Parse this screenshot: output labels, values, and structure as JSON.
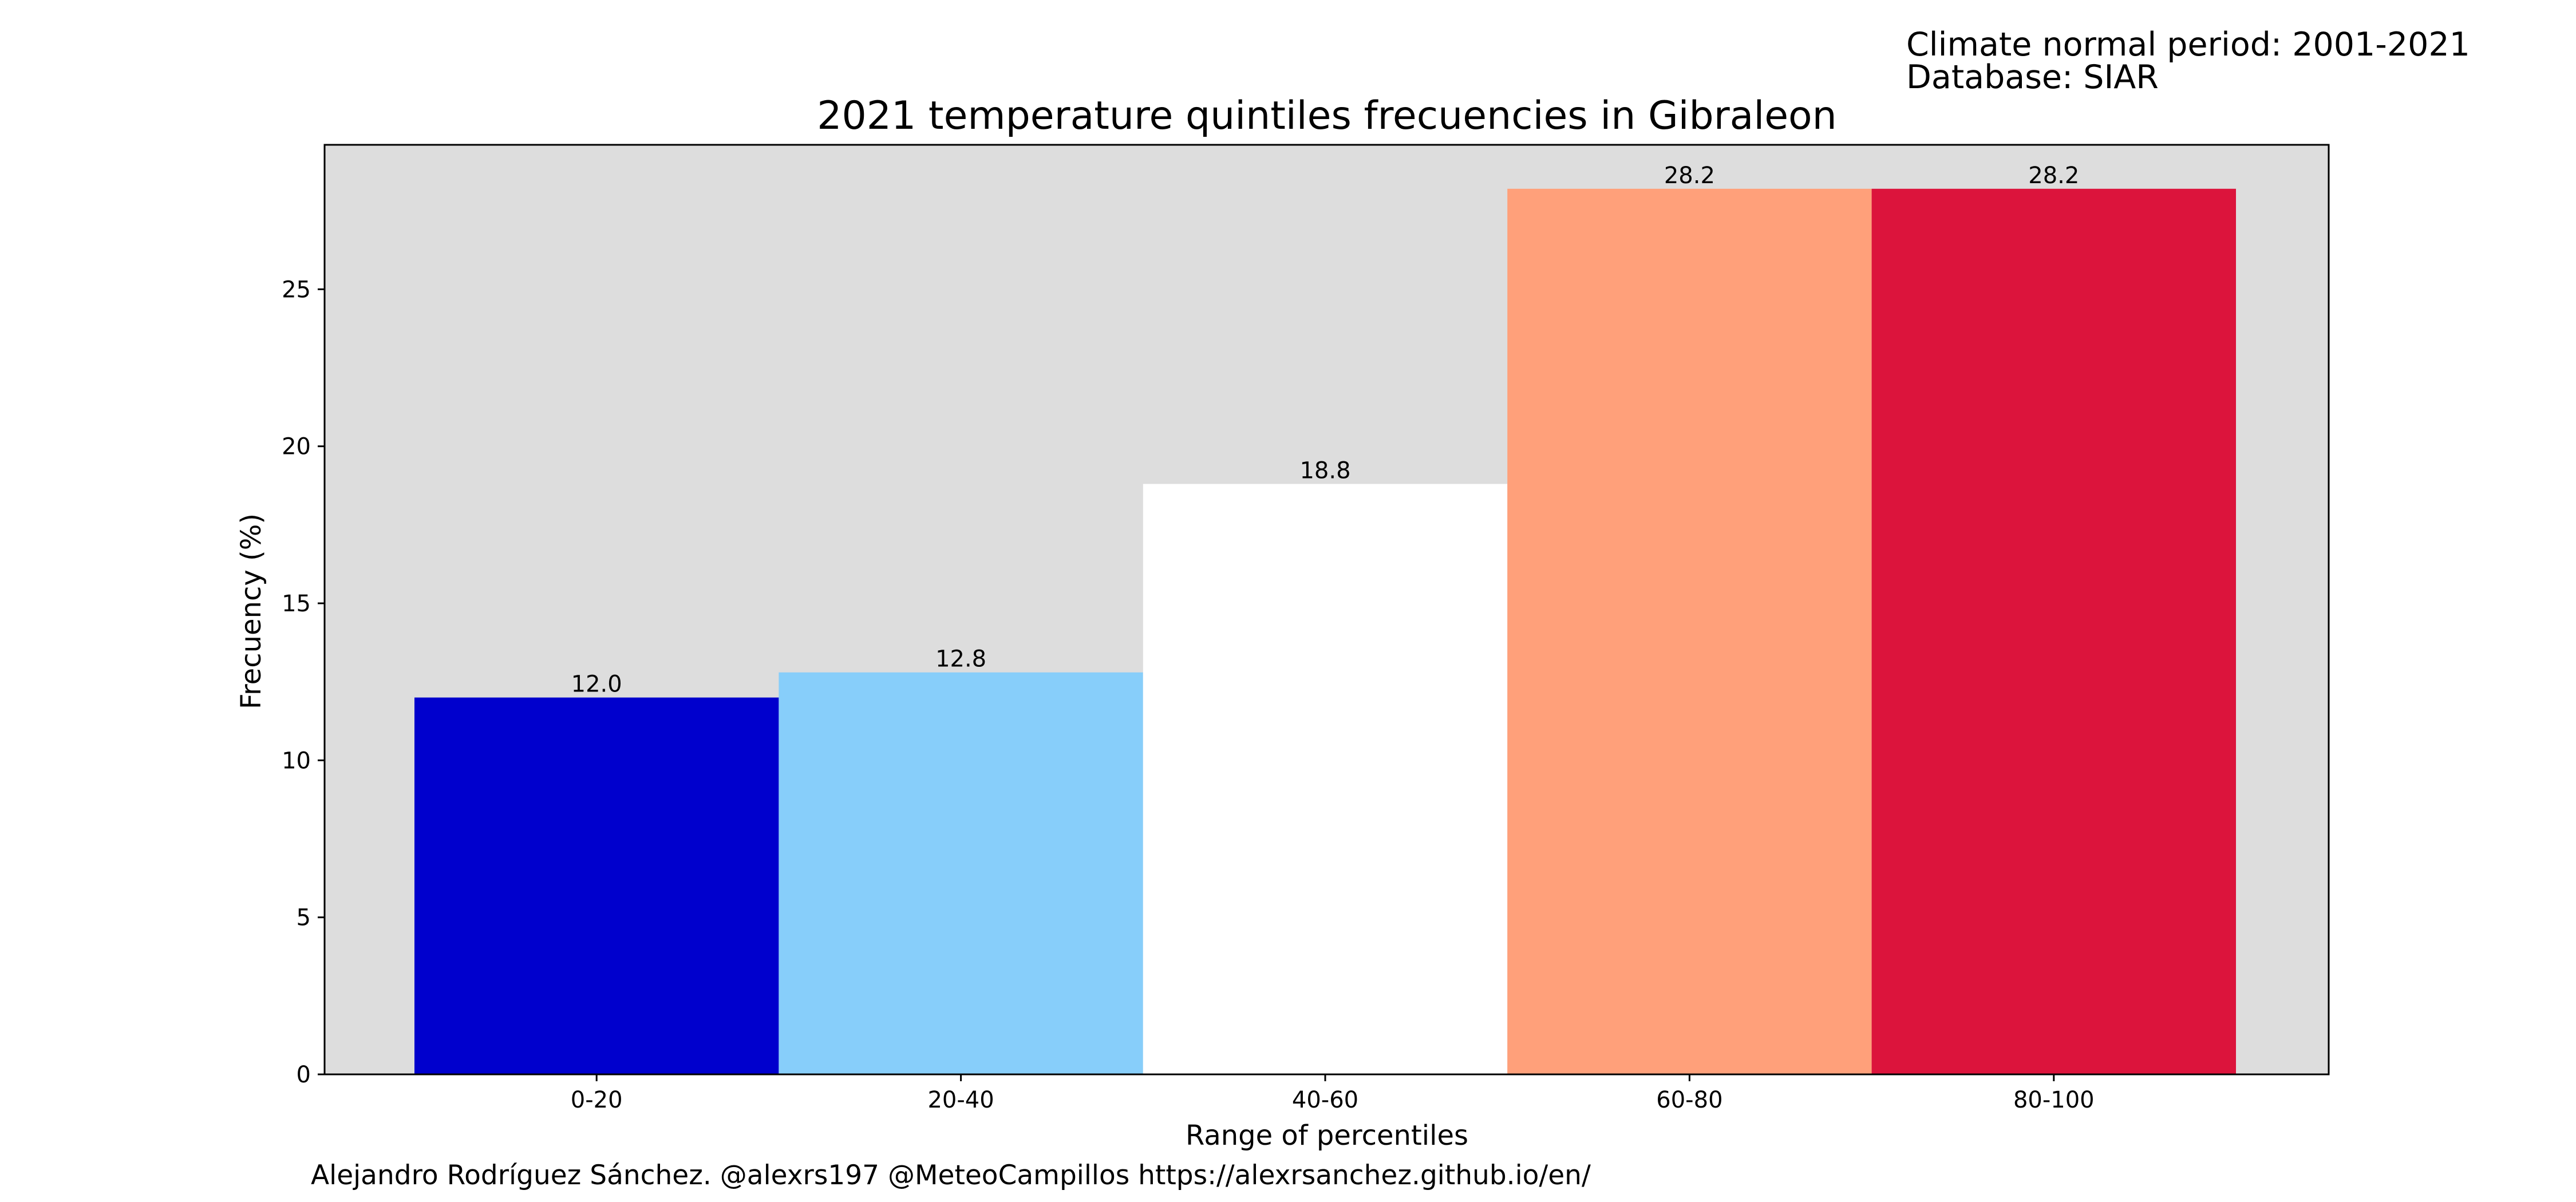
{
  "header": {
    "period_label": "Climate normal period: 2001-2021",
    "database_label": "Database: SIAR"
  },
  "footer": {
    "credit": "Alejandro Rodríguez Sánchez. @alexrs197 @MeteoCampillos   https://alexrsanchez.github.io/en/"
  },
  "chart_data": {
    "type": "bar",
    "title": "2021 temperature quintiles frecuencies in Gibraleon",
    "xlabel": "Range of percentiles",
    "ylabel": "Frecuency (%)",
    "categories": [
      "0-20",
      "20-40",
      "40-60",
      "60-80",
      "80-100"
    ],
    "values": [
      12.0,
      12.8,
      18.8,
      28.2,
      28.2
    ],
    "value_labels": [
      "12.0",
      "12.8",
      "18.8",
      "28.2",
      "28.2"
    ],
    "bar_colors": [
      "#0000CD",
      "#87CEFA",
      "#FFFFFF",
      "#FFA07A",
      "#DC143C"
    ],
    "plot_background": "#DDDDDD",
    "ylim": [
      0,
      29.6
    ],
    "yticks": [
      0,
      5,
      10,
      15,
      20,
      25
    ],
    "grid": false
  }
}
